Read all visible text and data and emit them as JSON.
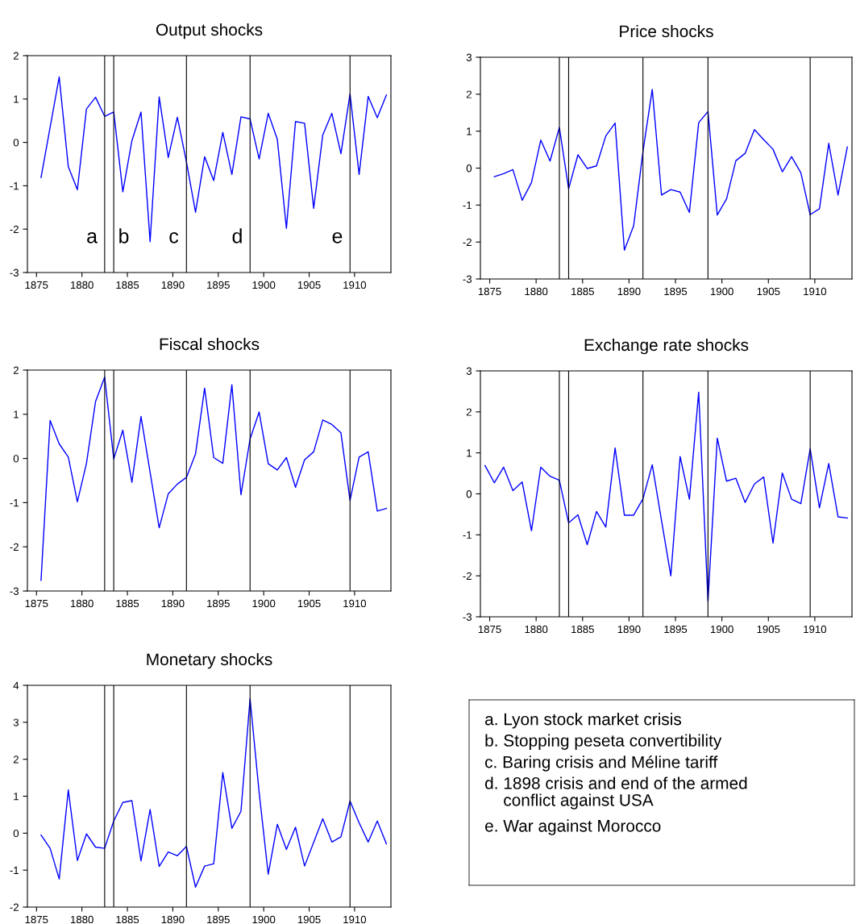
{
  "chart_data": [
    {
      "type": "line",
      "title": "Output shocks",
      "xlim": [
        1874,
        1914
      ],
      "xticks": [
        1875,
        1880,
        1885,
        1890,
        1895,
        1900,
        1905,
        1910
      ],
      "ylim": [
        -3,
        2
      ],
      "yticks": [
        -3,
        -2,
        -1,
        0,
        1,
        2
      ],
      "x": [
        1875.5,
        1876.5,
        1877.5,
        1878.5,
        1879.5,
        1880.5,
        1881.5,
        1882.5,
        1883.5,
        1884.5,
        1885.5,
        1886.5,
        1887.5,
        1888.5,
        1889.5,
        1890.5,
        1891.5,
        1892.5,
        1893.5,
        1894.5,
        1895.5,
        1896.5,
        1897.5,
        1898.5,
        1899.5,
        1900.5,
        1901.5,
        1902.5,
        1903.5,
        1904.5,
        1905.5,
        1906.5,
        1907.5,
        1908.5,
        1909.5,
        1910.5,
        1911.5,
        1912.5,
        1913.5
      ],
      "series": [
        {
          "color": "#0000ff",
          "values": [
            -0.81,
            0.35,
            1.51,
            -0.56,
            -1.09,
            0.77,
            1.04,
            0.6,
            0.7,
            -1.14,
            0.04,
            0.7,
            -2.29,
            1.05,
            -0.35,
            0.58,
            -0.45,
            -1.61,
            -0.33,
            -0.88,
            0.23,
            -0.74,
            0.59,
            0.54,
            -0.38,
            0.67,
            0.07,
            -1.98,
            0.48,
            0.44,
            -1.52,
            0.17,
            0.67,
            -0.26,
            1.12,
            -0.74,
            1.06,
            0.57,
            1.09
          ]
        }
      ],
      "ref_lines": [
        {
          "axis": "x",
          "value": 1882.5,
          "color": "#000000",
          "label": "a"
        },
        {
          "axis": "x",
          "value": 1883.5,
          "color": "#000000",
          "label": "b"
        },
        {
          "axis": "x",
          "value": 1891.5,
          "color": "#000000",
          "label": "c"
        },
        {
          "axis": "x",
          "value": 1898.5,
          "color": "#000000",
          "label": "d"
        },
        {
          "axis": "x",
          "value": 1909.5,
          "color": "#000000",
          "label": "e"
        }
      ]
    },
    {
      "type": "line",
      "title": "Price shocks",
      "xlim": [
        1874,
        1914
      ],
      "xticks": [
        1875,
        1880,
        1885,
        1890,
        1895,
        1900,
        1905,
        1910
      ],
      "ylim": [
        -3,
        3
      ],
      "yticks": [
        -3,
        -2,
        -1,
        0,
        1,
        2,
        3
      ],
      "x": [
        1875.5,
        1876.5,
        1877.5,
        1878.5,
        1879.5,
        1880.5,
        1881.5,
        1882.5,
        1883.5,
        1884.5,
        1885.5,
        1886.5,
        1887.5,
        1888.5,
        1889.5,
        1890.5,
        1891.5,
        1892.5,
        1893.5,
        1894.5,
        1895.5,
        1896.5,
        1897.5,
        1898.5,
        1899.5,
        1900.5,
        1901.5,
        1902.5,
        1903.5,
        1904.5,
        1905.5,
        1906.5,
        1907.5,
        1908.5,
        1909.5,
        1910.5,
        1911.5,
        1912.5,
        1913.5
      ],
      "series": [
        {
          "color": "#0000ff",
          "values": [
            -0.23,
            -0.15,
            -0.04,
            -0.87,
            -0.39,
            0.76,
            0.19,
            1.1,
            -0.56,
            0.36,
            -0.01,
            0.06,
            0.87,
            1.22,
            -2.22,
            -1.56,
            0.45,
            2.13,
            -0.73,
            -0.58,
            -0.65,
            -1.2,
            1.23,
            1.53,
            -1.27,
            -0.83,
            0.2,
            0.4,
            1.04,
            0.77,
            0.51,
            -0.1,
            0.31,
            -0.13,
            -1.26,
            -1.1,
            0.67,
            -0.73,
            0.57
          ]
        }
      ],
      "ref_lines": [
        {
          "axis": "x",
          "value": 1882.5,
          "color": "#000000"
        },
        {
          "axis": "x",
          "value": 1883.5,
          "color": "#000000"
        },
        {
          "axis": "x",
          "value": 1891.5,
          "color": "#000000"
        },
        {
          "axis": "x",
          "value": 1898.5,
          "color": "#000000"
        },
        {
          "axis": "x",
          "value": 1909.5,
          "color": "#000000"
        }
      ]
    },
    {
      "type": "line",
      "title": "Fiscal shocks",
      "xlim": [
        1874,
        1914
      ],
      "xticks": [
        1875,
        1880,
        1885,
        1890,
        1895,
        1900,
        1905,
        1910
      ],
      "ylim": [
        -3,
        2
      ],
      "yticks": [
        -3,
        -2,
        -1,
        0,
        1,
        2
      ],
      "x": [
        1875.5,
        1876.5,
        1877.5,
        1878.5,
        1879.5,
        1880.5,
        1881.5,
        1882.5,
        1883.5,
        1884.5,
        1885.5,
        1886.5,
        1887.5,
        1888.5,
        1889.5,
        1890.5,
        1891.5,
        1892.5,
        1893.5,
        1894.5,
        1895.5,
        1896.5,
        1897.5,
        1898.5,
        1899.5,
        1900.5,
        1901.5,
        1902.5,
        1903.5,
        1904.5,
        1905.5,
        1906.5,
        1907.5,
        1908.5,
        1909.5,
        1910.5,
        1911.5,
        1912.5,
        1913.5
      ],
      "series": [
        {
          "color": "#0000ff",
          "values": [
            -2.76,
            0.86,
            0.33,
            0.03,
            -0.98,
            -0.11,
            1.29,
            1.84,
            -0.01,
            0.64,
            -0.54,
            0.95,
            -0.31,
            -1.57,
            -0.8,
            -0.58,
            -0.43,
            0.1,
            1.59,
            0.02,
            -0.11,
            1.67,
            -0.82,
            0.44,
            1.05,
            -0.12,
            -0.26,
            0.02,
            -0.65,
            -0.03,
            0.15,
            0.87,
            0.77,
            0.58,
            -0.95,
            0.03,
            0.15,
            -1.19,
            -1.13
          ]
        }
      ],
      "ref_lines": [
        {
          "axis": "x",
          "value": 1882.5,
          "color": "#000000"
        },
        {
          "axis": "x",
          "value": 1883.5,
          "color": "#000000"
        },
        {
          "axis": "x",
          "value": 1891.5,
          "color": "#000000"
        },
        {
          "axis": "x",
          "value": 1898.5,
          "color": "#000000"
        },
        {
          "axis": "x",
          "value": 1909.5,
          "color": "#000000"
        }
      ]
    },
    {
      "type": "line",
      "title": "Exchange rate shocks",
      "xlim": [
        1874,
        1914
      ],
      "xticks": [
        1875,
        1880,
        1885,
        1890,
        1895,
        1900,
        1905,
        1910
      ],
      "ylim": [
        -3,
        3
      ],
      "yticks": [
        -3,
        -2,
        -1,
        0,
        1,
        2,
        3
      ],
      "x": [
        1874.5,
        1875.5,
        1876.5,
        1877.5,
        1878.5,
        1879.5,
        1880.5,
        1881.5,
        1882.5,
        1883.5,
        1884.5,
        1885.5,
        1886.5,
        1887.5,
        1888.5,
        1889.5,
        1890.5,
        1891.5,
        1892.5,
        1893.5,
        1894.5,
        1895.5,
        1896.5,
        1897.5,
        1898.5,
        1899.5,
        1900.5,
        1901.5,
        1902.5,
        1903.5,
        1904.5,
        1905.5,
        1906.5,
        1907.5,
        1908.5,
        1909.5,
        1910.5,
        1911.5,
        1912.5,
        1913.5
      ],
      "series": [
        {
          "color": "#0000ff",
          "values": [
            0.69,
            0.27,
            0.65,
            0.08,
            0.29,
            -0.9,
            0.65,
            0.43,
            0.33,
            -0.71,
            -0.51,
            -1.24,
            -0.43,
            -0.81,
            1.12,
            -0.52,
            -0.52,
            -0.12,
            0.71,
            -0.65,
            -2.0,
            0.91,
            -0.13,
            2.48,
            -2.62,
            1.36,
            0.31,
            0.38,
            -0.21,
            0.24,
            0.41,
            -1.2,
            0.51,
            -0.13,
            -0.24,
            1.1,
            -0.34,
            0.74,
            -0.56,
            -0.59
          ]
        }
      ],
      "ref_lines": [
        {
          "axis": "x",
          "value": 1882.5,
          "color": "#000000"
        },
        {
          "axis": "x",
          "value": 1883.5,
          "color": "#000000"
        },
        {
          "axis": "x",
          "value": 1891.5,
          "color": "#000000"
        },
        {
          "axis": "x",
          "value": 1898.5,
          "color": "#000000"
        },
        {
          "axis": "x",
          "value": 1909.5,
          "color": "#000000"
        }
      ]
    },
    {
      "type": "line",
      "title": "Monetary shocks",
      "xlim": [
        1874,
        1914
      ],
      "xticks": [
        1875,
        1880,
        1885,
        1890,
        1895,
        1900,
        1905,
        1910
      ],
      "ylim": [
        -2,
        4
      ],
      "yticks": [
        -2,
        -1,
        0,
        1,
        2,
        3,
        4
      ],
      "x": [
        1875.5,
        1876.5,
        1877.5,
        1878.5,
        1879.5,
        1880.5,
        1881.5,
        1882.5,
        1883.5,
        1884.5,
        1885.5,
        1886.5,
        1887.5,
        1888.5,
        1889.5,
        1890.5,
        1891.5,
        1892.5,
        1893.5,
        1894.5,
        1895.5,
        1896.5,
        1897.5,
        1898.5,
        1899.5,
        1900.5,
        1901.5,
        1902.5,
        1903.5,
        1904.5,
        1905.5,
        1906.5,
        1907.5,
        1908.5,
        1909.5,
        1910.5,
        1911.5,
        1912.5,
        1913.5
      ],
      "series": [
        {
          "color": "#0000ff",
          "values": [
            -0.05,
            -0.41,
            -1.24,
            1.17,
            -0.74,
            -0.02,
            -0.38,
            -0.41,
            0.33,
            0.83,
            0.88,
            -0.75,
            0.64,
            -0.9,
            -0.51,
            -0.61,
            -0.36,
            -1.46,
            -0.89,
            -0.83,
            1.64,
            0.13,
            0.59,
            3.64,
            1.1,
            -1.11,
            0.24,
            -0.44,
            0.16,
            -0.89,
            -0.25,
            0.39,
            -0.24,
            -0.1,
            0.87,
            0.28,
            -0.24,
            0.33,
            -0.29
          ]
        }
      ],
      "ref_lines": [
        {
          "axis": "x",
          "value": 1882.5,
          "color": "#000000"
        },
        {
          "axis": "x",
          "value": 1883.5,
          "color": "#000000"
        },
        {
          "axis": "x",
          "value": 1891.5,
          "color": "#000000"
        },
        {
          "axis": "x",
          "value": 1898.5,
          "color": "#000000"
        },
        {
          "axis": "x",
          "value": 1909.5,
          "color": "#000000"
        }
      ]
    },
    {
      "type": "other",
      "annotations": [
        "a. Lyon stock market crisis",
        "b. Stopping peseta convertibility",
        "c. Baring crisis and Méline tariff",
        "d. 1898 crisis and end of the armed\n    conflict against USA",
        "e. War against Morocco"
      ]
    }
  ]
}
